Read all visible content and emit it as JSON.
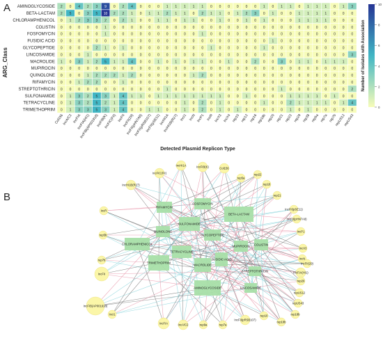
{
  "panel_a_label": "A",
  "panel_b_label": "B",
  "heatmap": {
    "ylabel": "ARG_Class",
    "xlabel": "Detected Plasmid Replicon Type",
    "legend_title": "Number of Isolates with Association",
    "legend_ticks": [
      "10",
      "8",
      "6",
      "4",
      "2",
      "0"
    ],
    "rows": [
      "AMINOGLYCOSIDE",
      "BETA-LACTAM",
      "CHLORAMPHENICOL",
      "COLISTIN",
      "FOSFOMYCIN",
      "FUSIDIC ACID",
      "GLYCOPEPTIDE",
      "LINCOSAMIDE",
      "MACROLIDE",
      "MUPIROCIN",
      "QUINOLONE",
      "RIFAMYCIN",
      "STREPTOTHRICIN",
      "SULFONAMIDE",
      "TETRACYCLINE",
      "TRIMETHOPRIM"
    ],
    "cols": [
      "Col156",
      "IncA/C2",
      "IncFIA",
      "IncFIA(HI1)",
      "IncFIB(AP001918)",
      "IncFIB(K)",
      "IncFIC(FII)",
      "IncFII",
      "IncFII(29)",
      "IncFII(pHN7A8)",
      "IncFII(pRSB107)",
      "IncFII(pSE11)",
      "IncHI1A",
      "IncHI1B(R27)",
      "IncI1",
      "IncN",
      "IncP1",
      "IncR",
      "IncX3",
      "IncX4",
      "rep10",
      "rep12",
      "rep16",
      "rep18b",
      "rep20",
      "rep21",
      "rep22",
      "rep29",
      "rep38",
      "rep5a",
      "rep7a",
      "rep7b",
      "repUS12",
      "repUS43"
    ],
    "values": [
      [
        2,
        0,
        4,
        2,
        3,
        9,
        0,
        2,
        4,
        0,
        0,
        0,
        1,
        1,
        1,
        1,
        1,
        0,
        0,
        0,
        0,
        0,
        0,
        1,
        0,
        1,
        1,
        0,
        1,
        1,
        1,
        0,
        1,
        3
      ],
      [
        2,
        5,
        0,
        3,
        5,
        10,
        2,
        2,
        1,
        0,
        1,
        1,
        2,
        1,
        1,
        0,
        2,
        1,
        1,
        0,
        1,
        2,
        3,
        0,
        1,
        0,
        0,
        1,
        1,
        1,
        1,
        0,
        0,
        0
      ],
      [
        0,
        1,
        2,
        3,
        3,
        2,
        0,
        2,
        1,
        0,
        0,
        1,
        1,
        0,
        1,
        1,
        0,
        0,
        1,
        0,
        0,
        1,
        0,
        1,
        0,
        0,
        0,
        1,
        1,
        1,
        1,
        0,
        0,
        0
      ],
      [
        0,
        0,
        0,
        0,
        0,
        1,
        0,
        0,
        0,
        0,
        0,
        0,
        0,
        0,
        0,
        0,
        0,
        0,
        0,
        0,
        0,
        0,
        0,
        0,
        0,
        0,
        0,
        0,
        0,
        0,
        0,
        0,
        0,
        0
      ],
      [
        0,
        0,
        0,
        0,
        0,
        1,
        0,
        0,
        0,
        0,
        0,
        0,
        0,
        0,
        0,
        0,
        1,
        0,
        0,
        0,
        0,
        0,
        0,
        0,
        0,
        0,
        0,
        0,
        0,
        0,
        0,
        0,
        0,
        0
      ],
      [
        0,
        0,
        0,
        0,
        0,
        0,
        0,
        0,
        0,
        0,
        0,
        0,
        0,
        0,
        0,
        0,
        0,
        0,
        0,
        0,
        0,
        0,
        0,
        0,
        1,
        0,
        0,
        0,
        0,
        0,
        0,
        0,
        0,
        0
      ],
      [
        0,
        0,
        0,
        0,
        2,
        1,
        0,
        1,
        0,
        0,
        0,
        0,
        0,
        0,
        0,
        0,
        0,
        1,
        0,
        0,
        0,
        0,
        0,
        1,
        0,
        0,
        0,
        0,
        0,
        0,
        0,
        0,
        0,
        0
      ],
      [
        0,
        0,
        0,
        1,
        0,
        0,
        0,
        0,
        0,
        0,
        0,
        0,
        0,
        0,
        0,
        0,
        0,
        0,
        0,
        0,
        0,
        0,
        0,
        0,
        0,
        0,
        0,
        0,
        0,
        0,
        0,
        0,
        0,
        3
      ],
      [
        1,
        0,
        3,
        1,
        2,
        5,
        1,
        1,
        4,
        0,
        0,
        1,
        0,
        1,
        0,
        1,
        1,
        0,
        0,
        1,
        0,
        0,
        2,
        0,
        0,
        3,
        0,
        1,
        1,
        0,
        1,
        1,
        1,
        0
      ],
      [
        0,
        0,
        0,
        0,
        0,
        0,
        0,
        0,
        0,
        0,
        0,
        0,
        0,
        0,
        0,
        0,
        0,
        0,
        0,
        0,
        0,
        0,
        0,
        0,
        0,
        0,
        0,
        0,
        0,
        0,
        0,
        0,
        0,
        0
      ],
      [
        0,
        0,
        0,
        1,
        2,
        2,
        2,
        1,
        2,
        0,
        0,
        0,
        0,
        0,
        0,
        1,
        2,
        0,
        0,
        0,
        0,
        0,
        0,
        0,
        0,
        0,
        0,
        0,
        0,
        0,
        0,
        0,
        0,
        0
      ],
      [
        0,
        0,
        1,
        2,
        2,
        0,
        0,
        1,
        0,
        0,
        0,
        0,
        0,
        0,
        0,
        0,
        0,
        0,
        0,
        0,
        0,
        0,
        0,
        0,
        0,
        0,
        0,
        0,
        0,
        0,
        0,
        0,
        0,
        0
      ],
      [
        0,
        0,
        0,
        0,
        0,
        0,
        0,
        0,
        0,
        0,
        0,
        0,
        1,
        0,
        0,
        0,
        0,
        0,
        0,
        0,
        0,
        0,
        0,
        0,
        0,
        1,
        0,
        0,
        0,
        0,
        0,
        0,
        0,
        2
      ],
      [
        0,
        1,
        3,
        2,
        5,
        3,
        1,
        4,
        1,
        1,
        0,
        1,
        1,
        1,
        1,
        1,
        1,
        1,
        1,
        0,
        0,
        1,
        0,
        0,
        0,
        0,
        1,
        1,
        1,
        1,
        0,
        1,
        0,
        0
      ],
      [
        0,
        1,
        3,
        2,
        5,
        2,
        1,
        4,
        0,
        0,
        0,
        0,
        0,
        0,
        1,
        0,
        2,
        0,
        1,
        0,
        0,
        0,
        0,
        1,
        0,
        0,
        2,
        1,
        1,
        1,
        1,
        0,
        1,
        4
      ],
      [
        0,
        1,
        3,
        3,
        5,
        3,
        1,
        4,
        0,
        0,
        1,
        1,
        0,
        0,
        1,
        0,
        2,
        0,
        1,
        0,
        1,
        0,
        0,
        0,
        0,
        0,
        1,
        0,
        1,
        0,
        0,
        0,
        0,
        0
      ]
    ]
  },
  "network": {
    "arg_nodes": [
      "BETA-LACTAM",
      "RIFAMYCIN",
      "FOSFOMYCIN",
      "SULFONAMIDE",
      "QUINOLONE",
      "GLYCOPEPTIDE",
      "CHLORAMPHENICOL",
      "TETRACYCLINE",
      "MUPIROCIN",
      "COLISTIN",
      "TRIMETHOPRIM",
      "MACROLIDE",
      "FUSIDIC ACID",
      "STREPTOTHRICIN",
      "AMINOGLYCOSIDE",
      "LINCOSAMIDE"
    ],
    "rep_nodes": [
      "IncFIC(FII)",
      "IncHI1A",
      "IncFIB(K)",
      "Col156",
      "rep5a",
      "rep22",
      "rep16",
      "rep21",
      "IncHI1B(R27)",
      "IncFII(pSE11)",
      "IncFII(pHN7A8)",
      "IncR",
      "IncP1",
      "rep5b",
      "IncX3",
      "IncN",
      "rep7b",
      "IncFIA(HI1)",
      "IncFII",
      "rep29",
      "IncFII(29)",
      "repUS12",
      "IncFIB(AP001918)",
      "repUS43",
      "rep18b",
      "IncI1",
      "IncFIA",
      "IncA/C2",
      "rep9a",
      "rep7a",
      "IncFII(pRSB107)",
      "rep10",
      "rep18b"
    ]
  },
  "colors": {
    "heat_low": "#f7fcb9",
    "heat_mid": "#41b6c4",
    "heat_high": "#253494",
    "arg_node": "#a8dfa8",
    "rep_node": "#fbf6a8",
    "edge_pink": "#e58aa0",
    "edge_cyan": "#7fd0d8",
    "edge_gray": "#6f6f6f"
  }
}
